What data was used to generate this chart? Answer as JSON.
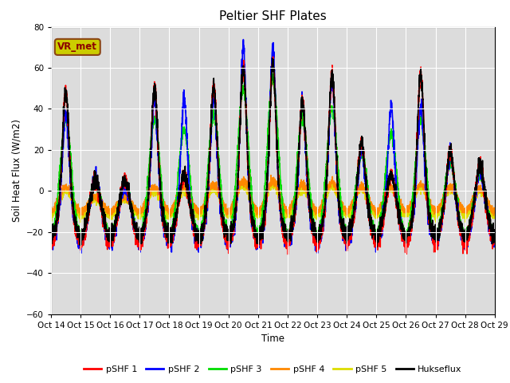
{
  "title": "Peltier SHF Plates",
  "xlabel": "Time",
  "ylabel": "Soil Heat Flux (W/m2)",
  "ylim": [
    -60,
    80
  ],
  "xlim": [
    0,
    360
  ],
  "bg_color": "#dcdcdc",
  "label_box_text": "VR_met",
  "label_box_facecolor": "#cccc00",
  "label_box_edgecolor": "#8b4513",
  "label_box_text_color": "#8b0000",
  "grid_color": "white",
  "yticks": [
    -60,
    -40,
    -20,
    0,
    20,
    40,
    60,
    80
  ],
  "tick_positions": [
    0,
    24,
    48,
    72,
    96,
    120,
    144,
    168,
    192,
    216,
    240,
    264,
    288,
    312,
    336,
    360
  ],
  "tick_labels": [
    "Oct 14",
    "Oct 15",
    "Oct 16",
    "Oct 17",
    "Oct 18",
    "Oct 19",
    "Oct 20",
    "Oct 21",
    "Oct 22",
    "Oct 23",
    "Oct 24",
    "Oct 25",
    "Oct 26",
    "Oct 27",
    "Oct 28",
    "Oct 29"
  ],
  "series_colors": {
    "pSHF 1": "#ff0000",
    "pSHF 2": "#0000ff",
    "pSHF 3": "#00dd00",
    "pSHF 4": "#ff8800",
    "pSHF 5": "#dddd00",
    "Hukseflux": "#000000"
  },
  "legend_order": [
    "pSHF 1",
    "pSHF 2",
    "pSHF 3",
    "pSHF 4",
    "pSHF 5",
    "Hukseflux"
  ],
  "lw": 1.2,
  "day_peaks_shf1": [
    48,
    5,
    5,
    50,
    8,
    51,
    60,
    62,
    44,
    57,
    23,
    8,
    57,
    20,
    13
  ],
  "day_peaks_shf2": [
    37,
    5,
    3,
    45,
    45,
    46,
    70,
    70,
    44,
    55,
    20,
    40,
    41,
    18,
    10
  ],
  "day_peaks_shf3": [
    35,
    3,
    2,
    35,
    30,
    37,
    50,
    55,
    35,
    40,
    18,
    28,
    35,
    14,
    8
  ],
  "day_peaks_shf4": [
    2,
    -3,
    -3,
    2,
    2,
    3,
    5,
    5,
    3,
    4,
    2,
    2,
    3,
    2,
    1
  ],
  "day_peaks_shf5": [
    0,
    -4,
    -4,
    0,
    0,
    1,
    3,
    3,
    1,
    2,
    1,
    1,
    2,
    1,
    0
  ],
  "night_base_shf1": -25,
  "night_base_shf2": -25,
  "night_base_shf3": -22,
  "night_base_shf4": -10,
  "night_base_shf5": -12,
  "night_base_hux": -22
}
